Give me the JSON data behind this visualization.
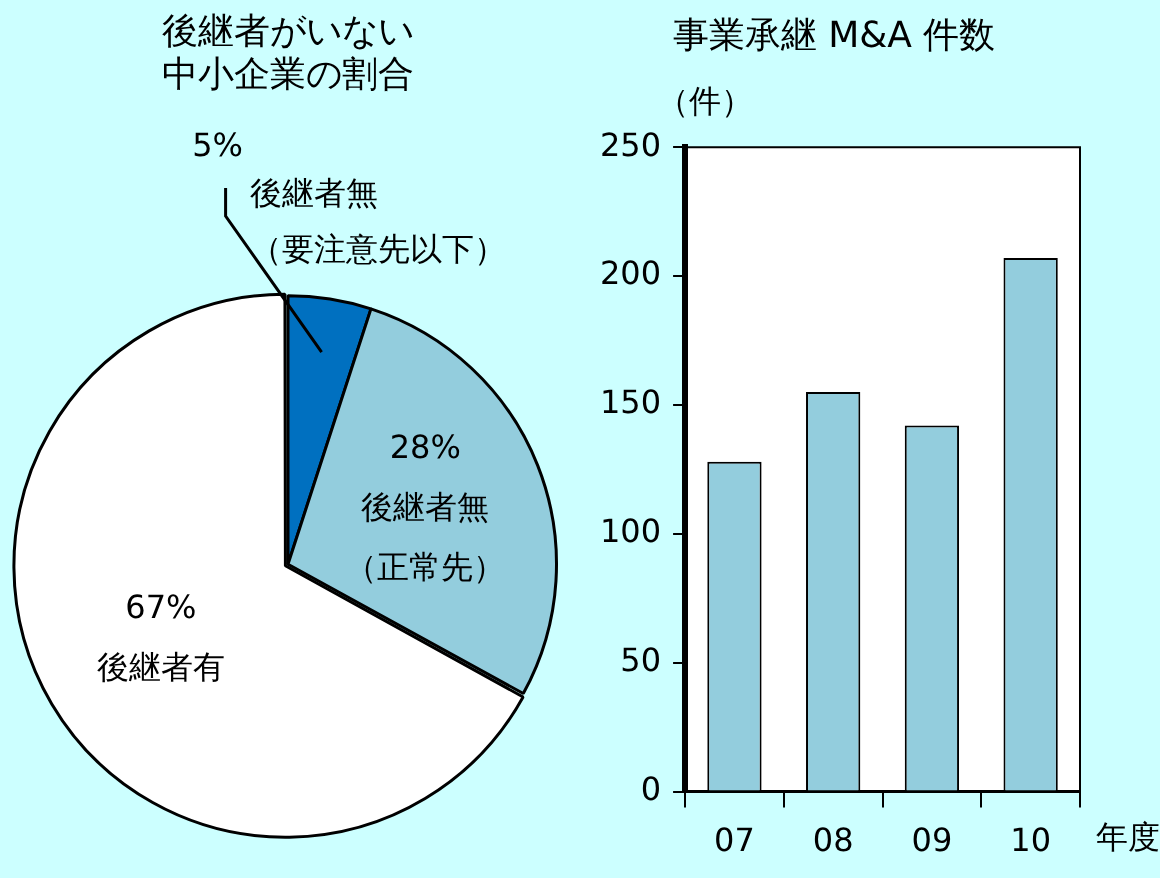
{
  "chart_data": [
    {
      "type": "pie",
      "title": "後継者がいない中小企業の割合",
      "categories": [
        "後継者無（要注意先以下）",
        "後継者無（正常先）",
        "後継者有"
      ],
      "values": [
        5,
        28,
        67
      ],
      "value_labels": [
        "5%",
        "28%",
        "67%"
      ],
      "colors": [
        "#0070c0",
        "#93cddd",
        "#ffffff"
      ],
      "legend": false
    },
    {
      "type": "bar",
      "title": "事業承継 M&A 件数",
      "ylabel": "（件）",
      "xlabel": "年度",
      "categories": [
        "07",
        "08",
        "09",
        "10"
      ],
      "values": [
        128,
        155,
        142,
        207
      ],
      "color": "#93cddd",
      "ylim": [
        0,
        250
      ],
      "yticks": [
        0,
        50,
        100,
        150,
        200,
        250
      ],
      "grid": false,
      "legend": false
    }
  ]
}
